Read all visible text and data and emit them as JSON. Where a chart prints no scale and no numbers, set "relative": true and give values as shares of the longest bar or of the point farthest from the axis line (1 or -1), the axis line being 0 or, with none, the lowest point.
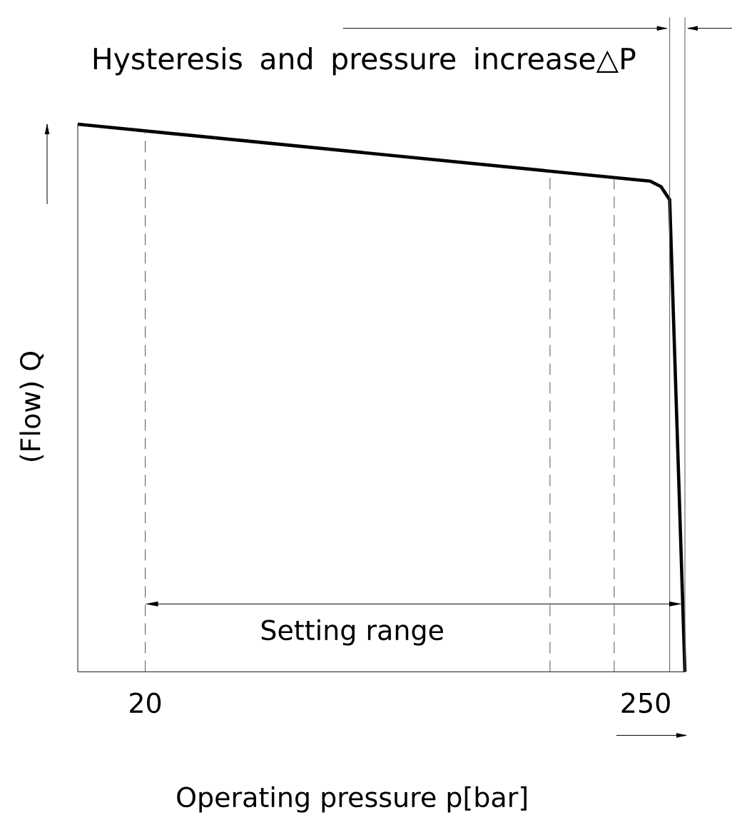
{
  "chart_data": {
    "type": "line",
    "title": "Hysteresis and pressure increase△P",
    "xlabel": "Operating pressure p[bar]",
    "ylabel": "(Flow) Q",
    "relative": true,
    "x": [
      -11,
      252,
      257,
      261,
      268
    ],
    "values": [
      1,
      0.896,
      0.886,
      0.862,
      0
    ],
    "color": "#000000",
    "line_style": "solid",
    "xlim": [
      -11,
      268
    ],
    "xticks": [
      20,
      250
    ],
    "ref_lines": [
      {
        "axis": "x",
        "value": 20,
        "color": "#555555",
        "line_style": "dashed"
      },
      {
        "axis": "x",
        "value": 206,
        "color": "#555555",
        "line_style": "dashed"
      },
      {
        "axis": "x",
        "value": 235.5,
        "color": "#555555",
        "line_style": "dashed"
      },
      {
        "axis": "x",
        "value": 261,
        "color": "#555555",
        "line_style": "solid"
      },
      {
        "axis": "x",
        "value": 268,
        "color": "#555555",
        "line_style": "solid"
      }
    ],
    "annotations": [
      "Setting range"
    ]
  }
}
